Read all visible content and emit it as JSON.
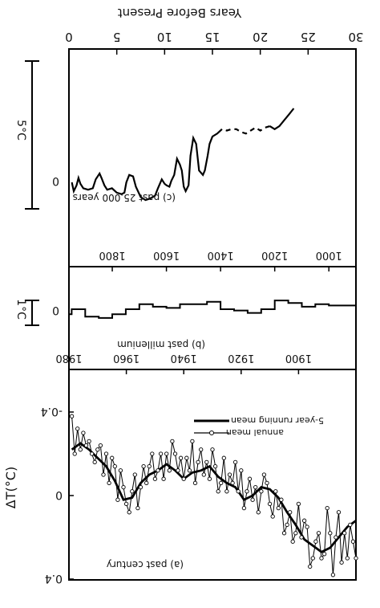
{
  "figure": {
    "top_axis_label": "Years Before Present",
    "top_axis_ticks": [
      "30",
      "25",
      "20",
      "15",
      "10",
      "5",
      "0"
    ],
    "scale_bar_c": "5°C",
    "scale_bar_b": "1°C",
    "zero_label_c": "0",
    "zero_label_b": "0"
  },
  "chart_data": [
    {
      "type": "line",
      "title": "(c) past 25,000 years",
      "xlabel": "Years Before Present",
      "xlim": [
        30,
        0
      ],
      "x_unit": "thousand years before present",
      "series": [
        {
          "style": "solid/dashed",
          "x": [
            23.5,
            23,
            22.5,
            22,
            21.5,
            21,
            20.5,
            20,
            19.5,
            19,
            18.5,
            18,
            17.5,
            17,
            16.5,
            16,
            15.5,
            15,
            14.7,
            14.5,
            14.2,
            14,
            13.6,
            13.3,
            13,
            12.7,
            12.5,
            12.2,
            12,
            11.8,
            11.6,
            11.3,
            11,
            10.7,
            10.5,
            10.2,
            10,
            9.7,
            9.3,
            9,
            8.5,
            8,
            7.5,
            7,
            6.7,
            6.3,
            6,
            5.8,
            5.5,
            5,
            4.5,
            4,
            3.7,
            3.4,
            3.2,
            2.8,
            2.5,
            2,
            1.5,
            1.2,
            1,
            0.8,
            0.5,
            0.3
          ],
          "y": [
            -5.0,
            -4.6,
            -4.2,
            -3.8,
            -3.6,
            -3.8,
            -3.7,
            -3.5,
            -3.7,
            -3.5,
            -3.3,
            -3.4,
            -3.6,
            -3.6,
            -3.5,
            -3.6,
            -3.3,
            -3.1,
            -2.6,
            -1.8,
            -0.8,
            -0.5,
            -0.8,
            -2.6,
            -3.0,
            -1.8,
            0.2,
            0.6,
            0.3,
            -0.8,
            -1.2,
            -1.6,
            -0.5,
            -0.1,
            0.3,
            0.2,
            0.1,
            -0.2,
            0.4,
            0.9,
            1.1,
            1.2,
            1.0,
            0.3,
            -0.4,
            -0.5,
            0.0,
            0.7,
            0.8,
            0.7,
            0.4,
            0.5,
            0.2,
            -0.3,
            -0.6,
            -0.2,
            0.4,
            0.5,
            0.4,
            0.1,
            -0.3,
            0.2,
            0.6,
            0.0
          ]
        }
      ],
      "dashed_x_range": [
        21,
        16
      ]
    },
    {
      "type": "line",
      "title": "(b) past millenium",
      "xlim": [
        900,
        1960
      ],
      "series": [
        {
          "style": "step",
          "x": [
            900,
            950,
            1000,
            1050,
            1100,
            1150,
            1200,
            1250,
            1300,
            1350,
            1400,
            1450,
            1500,
            1550,
            1600,
            1650,
            1700,
            1750,
            1800,
            1850,
            1900,
            1950
          ],
          "y": [
            -0.15,
            -0.15,
            -0.2,
            -0.1,
            -0.25,
            -0.35,
            0.0,
            0.15,
            0.05,
            0.0,
            -0.3,
            -0.2,
            -0.2,
            -0.05,
            -0.1,
            -0.2,
            0.0,
            0.2,
            0.35,
            0.3,
            0.0,
            0.2
          ]
        }
      ]
    },
    {
      "type": "line",
      "title": "(a) past century",
      "ylabel": "ΔT(°C)",
      "xlim": [
        1880,
        1980
      ],
      "ylim": [
        0.4,
        -0.4
      ],
      "yticks": [
        "-0.4",
        "0",
        "0.4"
      ],
      "series": [
        {
          "name": "5-year running mean",
          "x": [
            1880,
            1883,
            1886,
            1889,
            1892,
            1895,
            1898,
            1901,
            1904,
            1907,
            1910,
            1913,
            1916,
            1919,
            1922,
            1925,
            1928,
            1931,
            1934,
            1937,
            1940,
            1943,
            1946,
            1949,
            1952,
            1955,
            1958,
            1961,
            1964,
            1967,
            1970,
            1973,
            1976,
            1979
          ],
          "y": [
            0.12,
            0.15,
            0.2,
            0.25,
            0.27,
            0.24,
            0.21,
            0.14,
            0.08,
            0.01,
            -0.03,
            -0.04,
            0.0,
            0.02,
            -0.04,
            -0.06,
            -0.09,
            -0.14,
            -0.12,
            -0.11,
            -0.08,
            -0.12,
            -0.15,
            -0.12,
            -0.1,
            -0.06,
            0.01,
            0.02,
            -0.07,
            -0.14,
            -0.18,
            -0.22,
            -0.25,
            -0.22
          ]
        },
        {
          "name": "annual mean",
          "x": [
            1880,
            1881,
            1882,
            1883,
            1884,
            1885,
            1886,
            1887,
            1888,
            1889,
            1890,
            1891,
            1892,
            1893,
            1894,
            1895,
            1896,
            1897,
            1898,
            1899,
            1900,
            1901,
            1902,
            1903,
            1904,
            1905,
            1906,
            1907,
            1908,
            1909,
            1910,
            1911,
            1912,
            1913,
            1914,
            1915,
            1916,
            1917,
            1918,
            1919,
            1920,
            1921,
            1922,
            1923,
            1924,
            1925,
            1926,
            1927,
            1928,
            1929,
            1930,
            1931,
            1932,
            1933,
            1934,
            1935,
            1936,
            1937,
            1938,
            1939,
            1940,
            1941,
            1942,
            1943,
            1944,
            1945,
            1946,
            1947,
            1948,
            1949,
            1950,
            1951,
            1952,
            1953,
            1954,
            1955,
            1956,
            1957,
            1958,
            1959,
            1960,
            1961,
            1962,
            1963,
            1964,
            1965,
            1966,
            1967,
            1968,
            1969,
            1970,
            1971,
            1972,
            1973,
            1974,
            1975,
            1976,
            1977,
            1978,
            1979
          ],
          "y": [
            0.3,
            0.22,
            0.14,
            0.3,
            0.18,
            0.32,
            0.08,
            0.2,
            0.38,
            0.18,
            0.06,
            0.28,
            0.3,
            0.18,
            0.22,
            0.3,
            0.34,
            0.15,
            0.12,
            0.2,
            0.04,
            0.18,
            0.22,
            0.08,
            0.14,
            0.18,
            0.02,
            0.06,
            -0.02,
            0.1,
            0.04,
            -0.06,
            -0.1,
            -0.02,
            0.08,
            -0.04,
            0.02,
            -0.08,
            -0.02,
            0.06,
            -0.12,
            -0.02,
            -0.16,
            -0.06,
            -0.1,
            -0.02,
            -0.18,
            -0.06,
            -0.02,
            -0.14,
            -0.22,
            -0.08,
            -0.16,
            -0.1,
            -0.22,
            -0.16,
            -0.06,
            -0.26,
            -0.12,
            -0.18,
            -0.08,
            -0.18,
            -0.12,
            -0.2,
            -0.26,
            -0.12,
            -0.2,
            -0.08,
            -0.2,
            -0.12,
            -0.08,
            -0.2,
            -0.14,
            -0.06,
            -0.14,
            -0.04,
            0.06,
            -0.1,
            -0.02,
            0.08,
            0.04,
            -0.04,
            -0.12,
            0.02,
            -0.14,
            -0.18,
            -0.06,
            -0.2,
            -0.1,
            -0.24,
            -0.22,
            -0.16,
            -0.2,
            -0.26,
            -0.24,
            -0.3,
            -0.22,
            -0.32,
            -0.2,
            -0.38
          ]
        }
      ]
    }
  ]
}
